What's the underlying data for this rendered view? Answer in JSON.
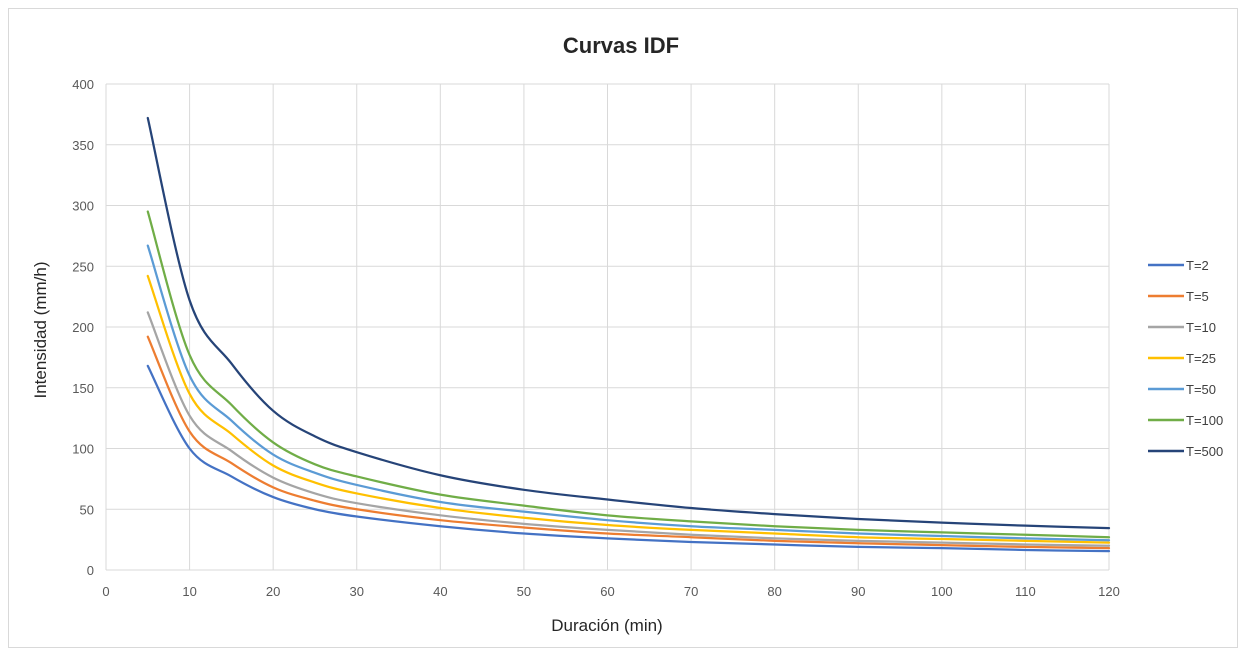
{
  "chart_data": {
    "type": "line",
    "title": "Curvas IDF",
    "xlabel": "Duración (min)",
    "ylabel": "Intensidad (mm/h)",
    "xlim": [
      0,
      120
    ],
    "ylim": [
      0,
      400
    ],
    "xticks": [
      0,
      10,
      20,
      30,
      40,
      50,
      60,
      70,
      80,
      90,
      100,
      110,
      120
    ],
    "yticks": [
      0,
      50,
      100,
      150,
      200,
      250,
      300,
      350,
      400
    ],
    "grid": true,
    "legend_position": "right",
    "x": [
      5,
      10,
      15,
      20,
      25,
      30,
      40,
      50,
      60,
      70,
      80,
      90,
      100,
      110,
      120
    ],
    "series": [
      {
        "name": "T=2",
        "color": "#4472C4",
        "values": [
          168,
          100,
          77,
          60,
          50,
          44,
          36,
          30,
          26,
          23,
          21,
          19,
          18,
          16.5,
          15.5
        ]
      },
      {
        "name": "T=5",
        "color": "#ED7D31",
        "values": [
          192,
          114,
          88,
          68,
          57,
          50,
          41,
          35,
          30,
          27,
          24,
          22,
          20.5,
          19,
          18
        ]
      },
      {
        "name": "T=10",
        "color": "#A5A5A5",
        "values": [
          212,
          127,
          98,
          76,
          63,
          55,
          45,
          38,
          33,
          29,
          26,
          24,
          22.5,
          21,
          20
        ]
      },
      {
        "name": "T=25",
        "color": "#FFC000",
        "values": [
          242,
          145,
          112,
          86,
          72,
          63,
          51,
          43,
          37,
          33,
          30,
          27,
          25.5,
          24,
          22.5
        ]
      },
      {
        "name": "T=50",
        "color": "#5B9BD5",
        "values": [
          267,
          160,
          123,
          95,
          80,
          70,
          56,
          48,
          41,
          36,
          33,
          30,
          28,
          26,
          24.5
        ]
      },
      {
        "name": "T=100",
        "color": "#70AD47",
        "values": [
          295,
          177,
          136,
          105,
          87,
          77,
          62,
          53,
          45,
          40,
          36,
          33,
          31,
          29,
          27
        ]
      },
      {
        "name": "T=500",
        "color": "#264478",
        "values": [
          372,
          222,
          170,
          131,
          110,
          97,
          78,
          66,
          58,
          51,
          46,
          42,
          39,
          36.5,
          34.5
        ]
      }
    ]
  }
}
